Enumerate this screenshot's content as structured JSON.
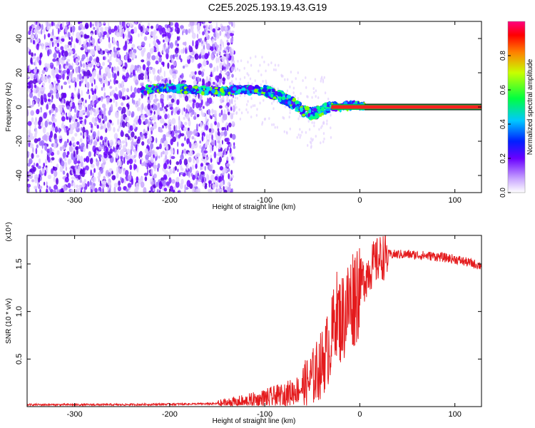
{
  "title": "C2E5.2025.193.19.43.G19",
  "chart_data": [
    {
      "type": "heatmap",
      "xlabel": "Height of straight line (km)",
      "ylabel": "Frequency (Hz)",
      "xlim": [
        -350,
        128
      ],
      "ylim": [
        -50,
        50
      ],
      "xticks": [
        -300,
        -200,
        -100,
        0,
        100
      ],
      "yticks": [
        -40,
        -20,
        0,
        20,
        40
      ],
      "colorbar": {
        "label": "Normalized spectral amplitude",
        "range": [
          0,
          1
        ],
        "ticks": [
          "0.0",
          "0.2",
          "0.4",
          "0.6",
          "0.8"
        ]
      },
      "ridge": {
        "x": [
          -230,
          -200,
          -170,
          -150,
          -130,
          -110,
          -95,
          -80,
          -70,
          -60,
          -50,
          -40,
          -30,
          -20,
          -10,
          0,
          5,
          128
        ],
        "y": [
          10,
          11,
          10,
          9,
          10,
          10,
          9,
          5,
          2,
          -2,
          -4,
          -2,
          0,
          0,
          1,
          1,
          0,
          0
        ]
      },
      "noise_region_x": [
        -350,
        -140
      ]
    },
    {
      "type": "line",
      "xlabel": "Height of straight line (km)",
      "ylabel": "SNR (10 * v/v)",
      "yscale_label": "(x10⁴)",
      "xlim": [
        -350,
        128
      ],
      "ylim": [
        0,
        1.8
      ],
      "xticks": [
        -300,
        -200,
        -100,
        0,
        100
      ],
      "yticks": [
        0.5,
        1.0,
        1.5
      ],
      "ytick_labels": [
        "0.5",
        "1.0",
        "1.5"
      ],
      "series": [
        {
          "color": "#e41a1c",
          "x": [
            -350,
            -250,
            -150,
            -120,
            -100,
            -80,
            -60,
            -50,
            -40,
            -30,
            -25,
            -20,
            -15,
            -10,
            -5,
            0,
            5,
            10,
            20,
            30,
            50,
            80,
            100,
            128
          ],
          "y": [
            0.02,
            0.02,
            0.03,
            0.05,
            0.08,
            0.12,
            0.2,
            0.3,
            0.45,
            0.7,
            1.0,
            0.9,
            1.0,
            1.1,
            1.2,
            1.3,
            1.35,
            1.45,
            1.55,
            1.6,
            1.6,
            1.58,
            1.55,
            1.48
          ]
        }
      ]
    }
  ]
}
